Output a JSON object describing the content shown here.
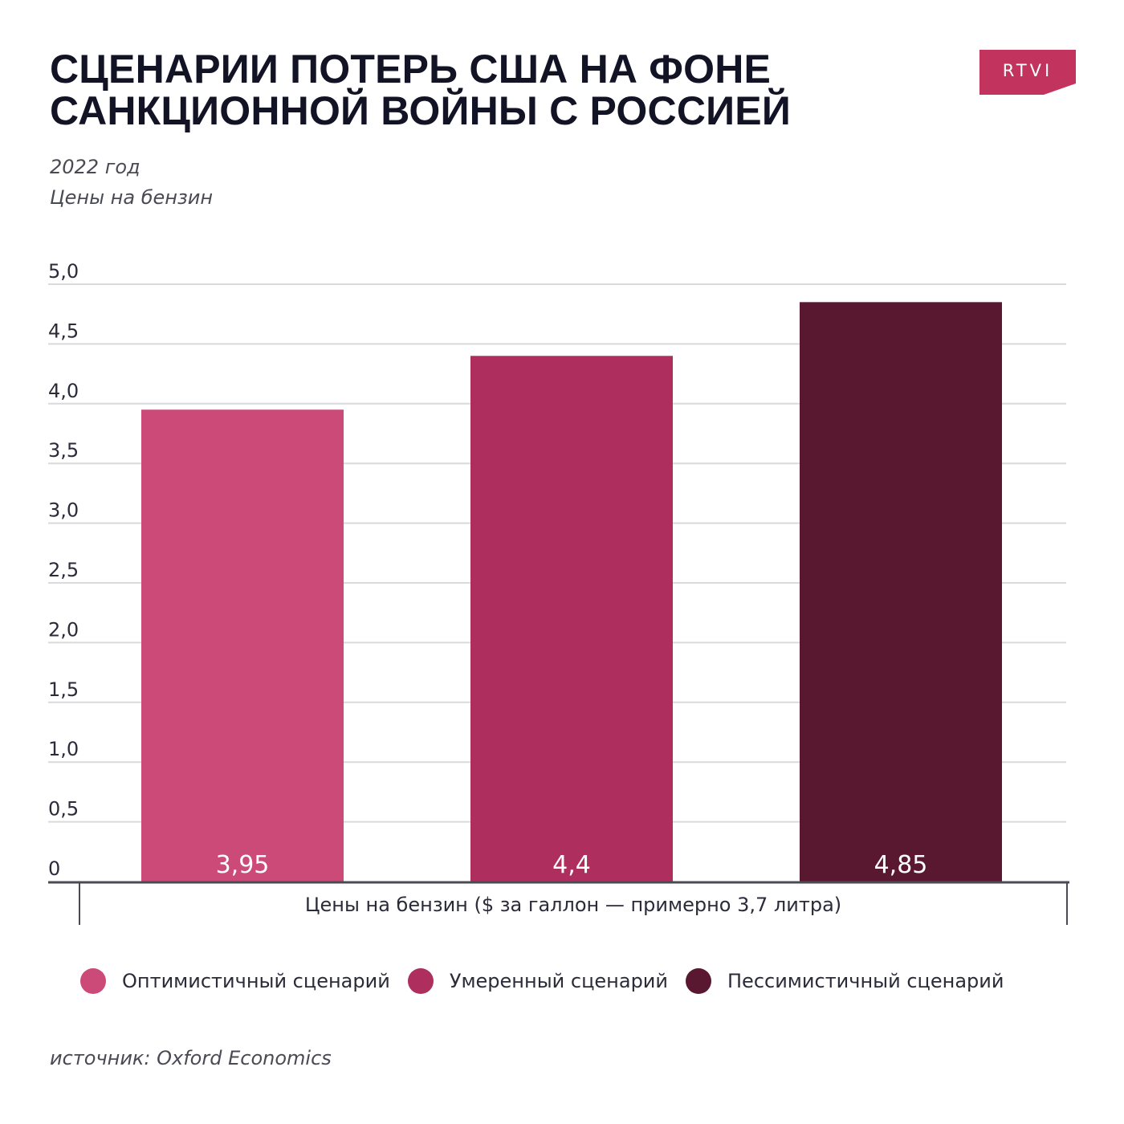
{
  "header": {
    "title_line1": "СЦЕНАРИИ ПОТЕРЬ США НА ФОНЕ",
    "title_line2": "САНКЦИОННОЙ ВОЙНЫ С РОССИЕЙ",
    "subtitle_year": "2022 год",
    "subtitle_topic": "Цены на бензин"
  },
  "logo": {
    "text": "RTVI",
    "color": "#c2335e"
  },
  "chart_data": {
    "type": "bar",
    "categories": [
      "Цены на бензин ($ за галлон — примерно 3,7 литра)"
    ],
    "series": [
      {
        "name": "Оптимистичный сценарий",
        "values": [
          3.95
        ],
        "label": "3,95",
        "color": "#cc4a78"
      },
      {
        "name": "Умеренный сценарий",
        "values": [
          4.4
        ],
        "label": "4,4",
        "color": "#ae2f5e"
      },
      {
        "name": "Пессимистичный сценарий",
        "values": [
          4.85
        ],
        "label": "4,85",
        "color": "#5a1830"
      }
    ],
    "ylim": [
      0,
      5
    ],
    "yticks": [
      0,
      0.5,
      1,
      1.5,
      2,
      2.5,
      3,
      3.5,
      4,
      4.5,
      5
    ],
    "ytick_labels": [
      "0",
      "0,5",
      "1,0",
      "1,5",
      "2,0",
      "2,5",
      "3,0",
      "3,5",
      "4,0",
      "4,5",
      "5,0"
    ],
    "xlabel": "Цены на бензин ($ за галлон — примерно 3,7 литра)",
    "grid": true,
    "legend_position": "bottom"
  },
  "footer": {
    "source": "источник: Oxford Economics"
  }
}
